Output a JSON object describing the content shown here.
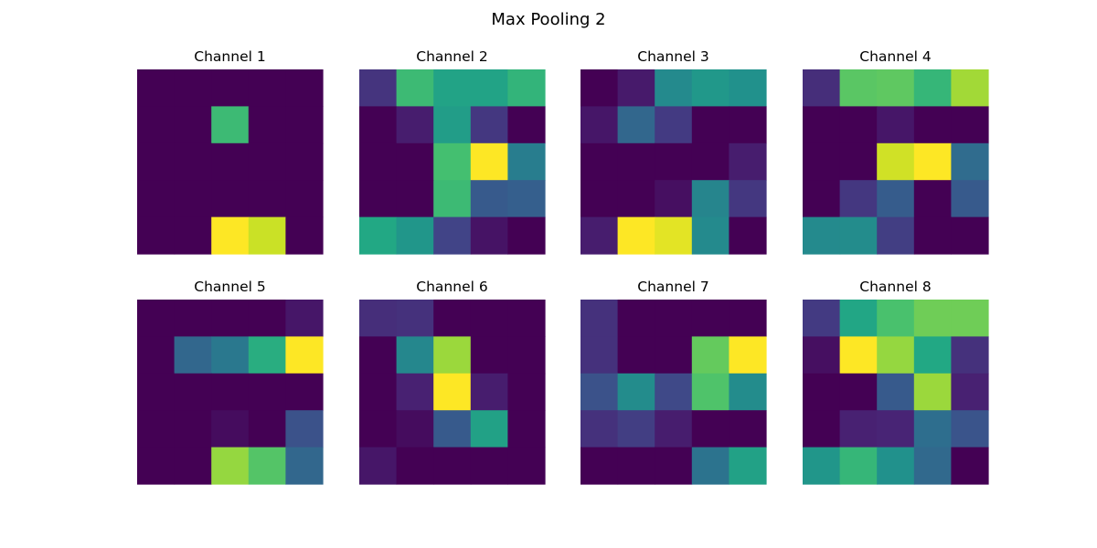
{
  "figure_title": "Max Pooling 2",
  "chart_data": {
    "type": "heatmap",
    "title": "Max Pooling 2",
    "colormap": "viridis",
    "grid": false,
    "value_range": [
      0,
      1
    ],
    "panels": [
      {
        "title": "Channel 1",
        "values": [
          [
            0,
            0,
            0,
            0,
            0
          ],
          [
            0,
            0,
            0.68,
            0,
            0
          ],
          [
            0,
            0,
            0,
            0,
            0
          ],
          [
            0,
            0,
            0,
            0,
            0
          ],
          [
            0,
            0,
            1.0,
            0.92,
            0
          ]
        ]
      },
      {
        "title": "Channel 2",
        "values": [
          [
            0.15,
            0.68,
            0.58,
            0.58,
            0.65
          ],
          [
            0,
            0.08,
            0.55,
            0.16,
            0
          ],
          [
            0,
            0,
            0.7,
            1.0,
            0.42
          ],
          [
            0,
            0,
            0.68,
            0.28,
            0.3
          ],
          [
            0.6,
            0.52,
            0.2,
            0.05,
            0
          ]
        ]
      },
      {
        "title": "Channel 3",
        "values": [
          [
            0,
            0.07,
            0.47,
            0.53,
            0.5
          ],
          [
            0.06,
            0.33,
            0.17,
            0,
            0
          ],
          [
            0,
            0,
            0,
            0,
            0.08
          ],
          [
            0,
            0,
            0.04,
            0.45,
            0.16
          ],
          [
            0.08,
            1.0,
            0.96,
            0.47,
            0
          ]
        ]
      },
      {
        "title": "Channel 4",
        "values": [
          [
            0.13,
            0.74,
            0.75,
            0.66,
            0.86
          ],
          [
            0,
            0,
            0.06,
            0,
            0
          ],
          [
            0,
            0,
            0.93,
            1.0,
            0.35
          ],
          [
            0,
            0.16,
            0.29,
            0,
            0.28
          ],
          [
            0.47,
            0.48,
            0.18,
            0,
            0
          ]
        ]
      },
      {
        "title": "Channel 5",
        "values": [
          [
            0,
            0,
            0,
            0,
            0.06
          ],
          [
            0,
            0.33,
            0.4,
            0.62,
            1.0
          ],
          [
            0,
            0,
            0,
            0,
            0
          ],
          [
            0,
            0,
            0.03,
            0,
            0.25
          ],
          [
            0,
            0,
            0.84,
            0.73,
            0.33
          ]
        ]
      },
      {
        "title": "Channel 6",
        "values": [
          [
            0.13,
            0.14,
            0,
            0,
            0
          ],
          [
            0,
            0.46,
            0.85,
            0,
            0
          ],
          [
            0,
            0.09,
            1.0,
            0.08,
            0
          ],
          [
            0,
            0.03,
            0.28,
            0.57,
            0
          ],
          [
            0.06,
            0,
            0,
            0,
            0
          ]
        ]
      },
      {
        "title": "Channel 7",
        "values": [
          [
            0.14,
            0,
            0,
            0,
            0
          ],
          [
            0.14,
            0,
            0,
            0.76,
            1.0
          ],
          [
            0.25,
            0.48,
            0.22,
            0.72,
            0.48
          ],
          [
            0.14,
            0.18,
            0.08,
            0,
            0
          ],
          [
            0,
            0,
            0,
            0.38,
            0.57
          ]
        ]
      },
      {
        "title": "Channel 8",
        "values": [
          [
            0.17,
            0.59,
            0.71,
            0.78,
            0.78
          ],
          [
            0.04,
            1.0,
            0.84,
            0.6,
            0.14
          ],
          [
            0,
            0,
            0.28,
            0.85,
            0.09
          ],
          [
            0,
            0.09,
            0.1,
            0.36,
            0.26
          ],
          [
            0.52,
            0.66,
            0.5,
            0.34,
            0
          ]
        ]
      }
    ]
  }
}
